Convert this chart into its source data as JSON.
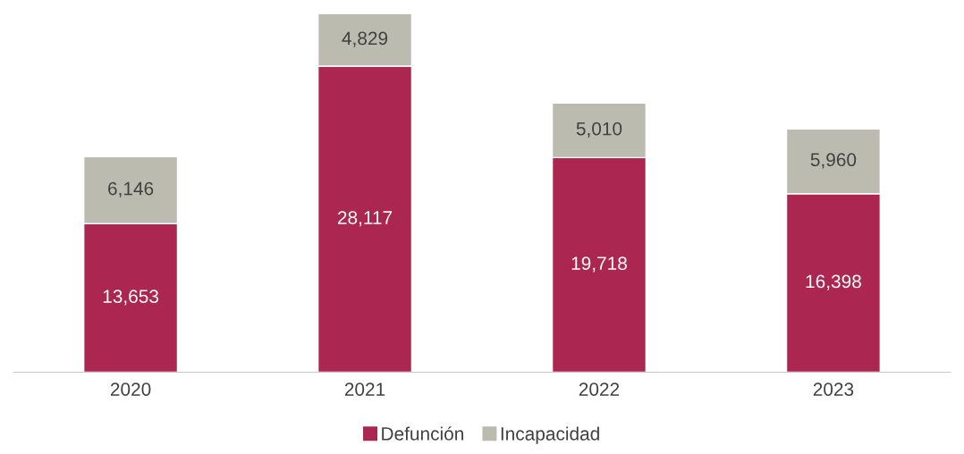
{
  "chart_data": {
    "type": "bar",
    "stacked": true,
    "categories": [
      "2020",
      "2021",
      "2022",
      "2023"
    ],
    "series": [
      {
        "name": "Defunción",
        "color": "#ab2650",
        "values": [
          13653,
          28117,
          19718,
          16398
        ],
        "value_labels": [
          "13,653",
          "28,117",
          "19,718",
          "16,398"
        ]
      },
      {
        "name": "Incapacidad",
        "color": "#bcbbb0",
        "values": [
          6146,
          4829,
          5010,
          5960
        ],
        "value_labels": [
          "6,146",
          "4,829",
          "5,010",
          "5,960"
        ]
      }
    ],
    "legend": "bottom",
    "grid": false,
    "tick_labels": "x"
  }
}
